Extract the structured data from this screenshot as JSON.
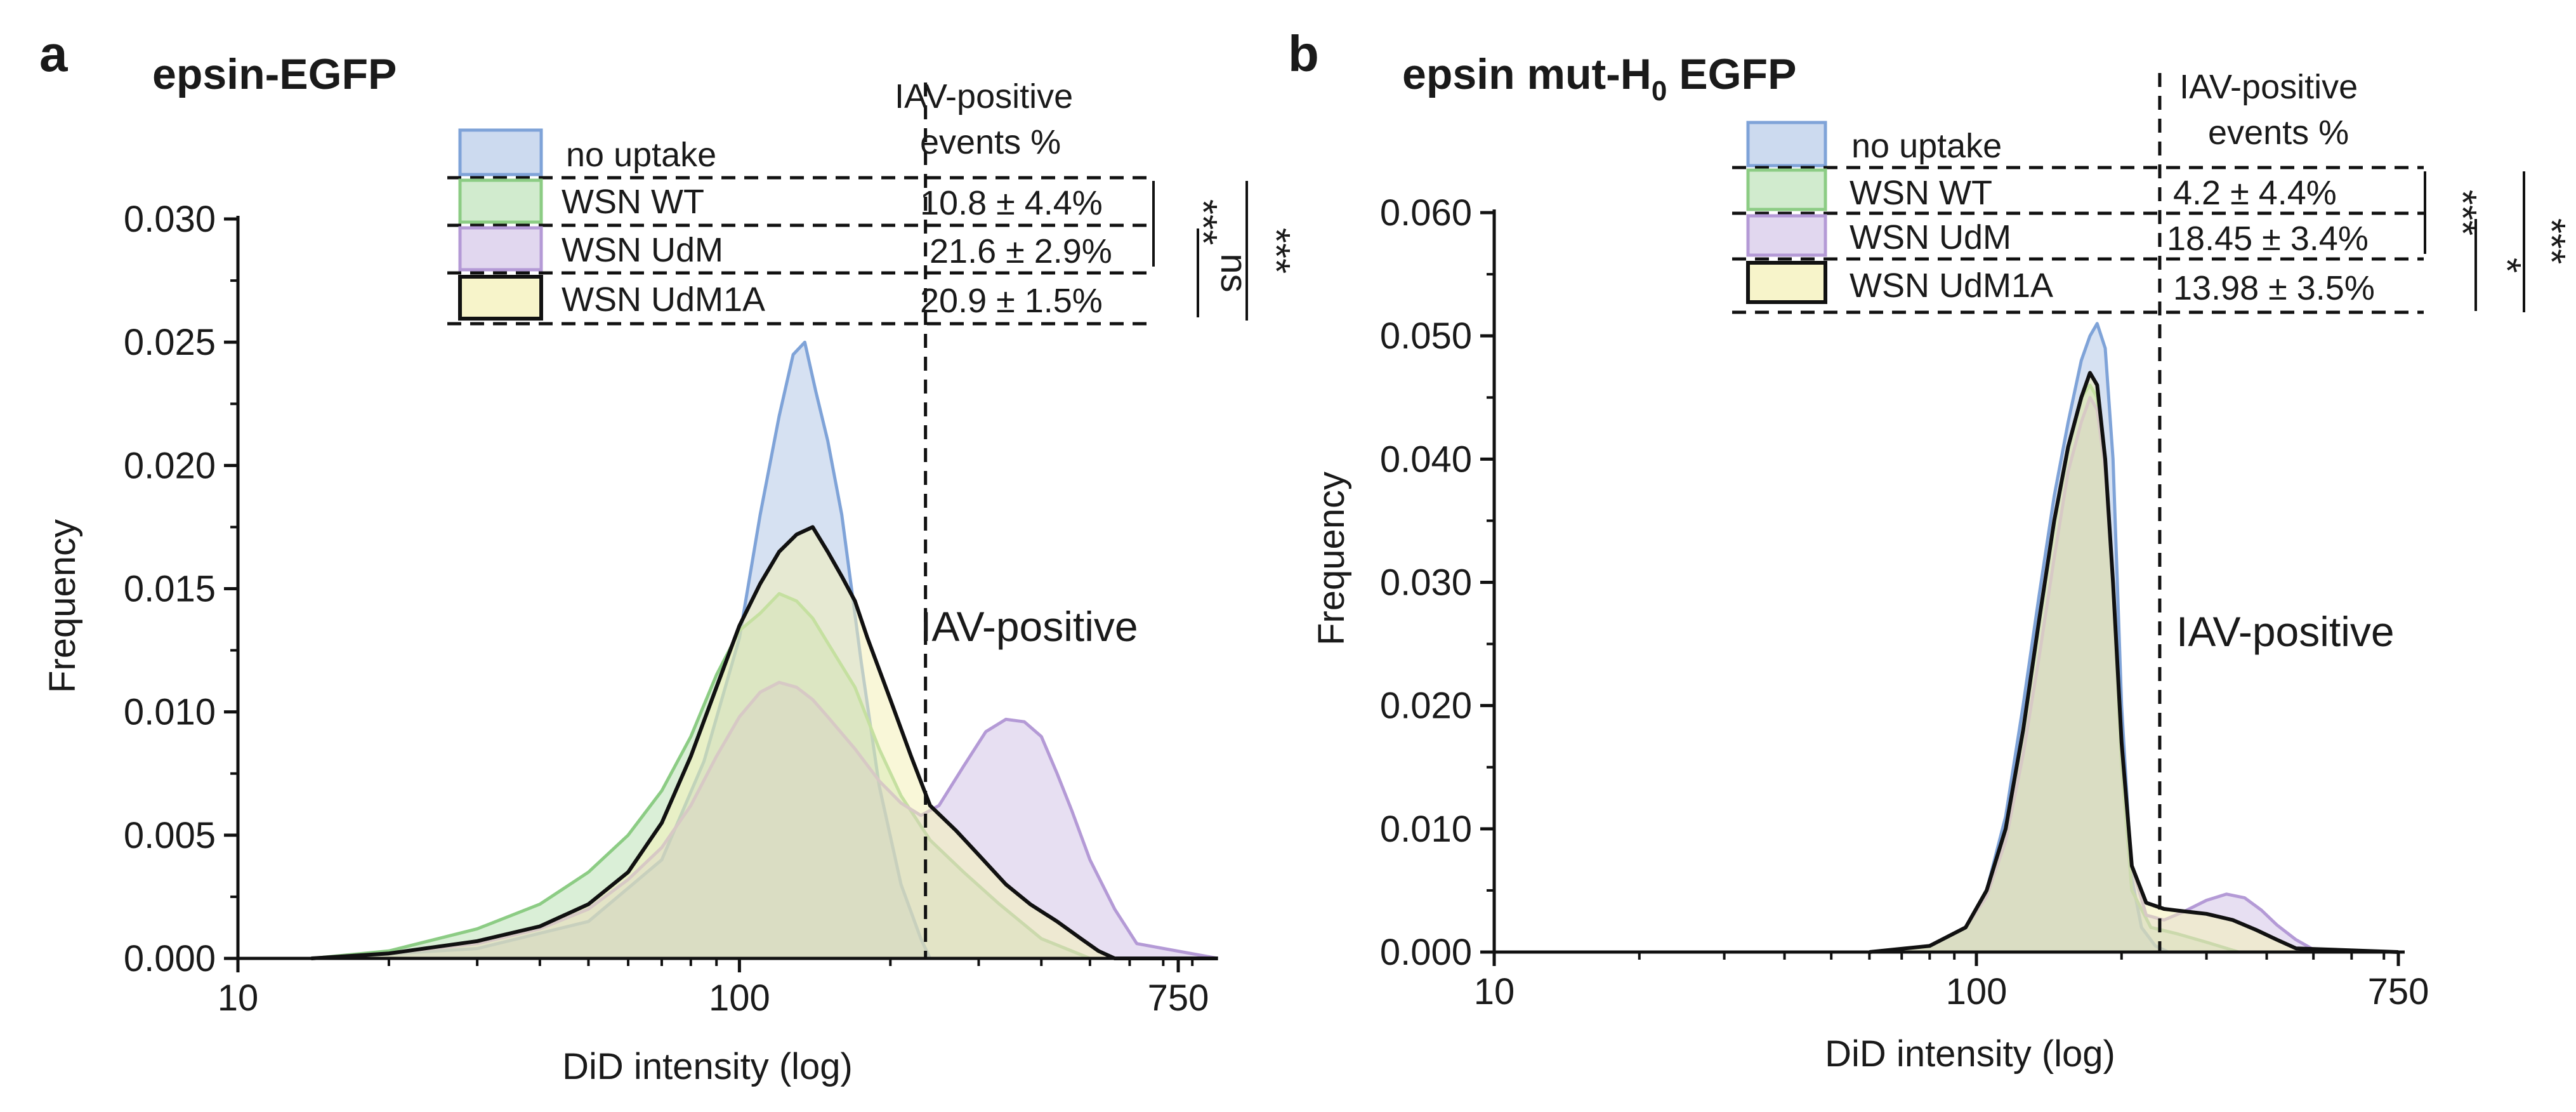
{
  "colors": {
    "no_uptake": "#7fa3d8",
    "wsn_wt": "#8ccc84",
    "wsn_udm": "#b49ad6",
    "wsn_udm1a": "#f4f0b8",
    "black": "#111111"
  },
  "chart_data": [
    {
      "type": "area",
      "panel_letter": "a",
      "title": "epsin-EGFP",
      "xlabel": "DiD intensity (log)",
      "ylabel": "Frequency",
      "xscale": "log",
      "xlim": [
        10,
        850
      ],
      "ylim": [
        0,
        0.03
      ],
      "x_ticks": [
        10,
        100,
        750
      ],
      "x_tick_labels": [
        "10",
        "100",
        "750"
      ],
      "y_ticks": [
        0,
        0.005,
        0.01,
        0.015,
        0.02,
        0.025,
        0.03
      ],
      "y_tick_labels": [
        "0.000",
        "0.005",
        "0.010",
        "0.015",
        "0.020",
        "0.025",
        "0.030"
      ],
      "threshold_x": 235,
      "region_label": "IAV-positive",
      "table_header": [
        "IAV-positive",
        "events %"
      ],
      "series": [
        {
          "name": "no uptake",
          "key": "no_uptake",
          "value": "",
          "x": [
            14,
            30,
            50,
            70,
            85,
            100,
            110,
            120,
            128,
            135,
            142,
            150,
            160,
            175,
            190,
            210,
            230,
            240,
            900
          ],
          "y": [
            0,
            0.0004,
            0.0015,
            0.004,
            0.008,
            0.013,
            0.018,
            0.022,
            0.0245,
            0.025,
            0.023,
            0.021,
            0.018,
            0.012,
            0.007,
            0.003,
            0.0008,
            0,
            0
          ]
        },
        {
          "name": "WSN WT",
          "key": "wsn_wt",
          "value": "10.8 ± 4.4%",
          "x": [
            14,
            20,
            30,
            40,
            50,
            60,
            70,
            80,
            90,
            100,
            110,
            120,
            130,
            140,
            150,
            170,
            190,
            210,
            240,
            280,
            330,
            400,
            500,
            900
          ],
          "y": [
            0,
            0.0003,
            0.0012,
            0.0022,
            0.0035,
            0.005,
            0.0068,
            0.009,
            0.0115,
            0.0133,
            0.014,
            0.0148,
            0.0145,
            0.0138,
            0.0128,
            0.011,
            0.0085,
            0.0066,
            0.0048,
            0.0035,
            0.0022,
            0.0008,
            0,
            0
          ]
        },
        {
          "name": "WSN UdM",
          "key": "wsn_udm",
          "value": "21.6 ± 2.9%",
          "x": [
            14,
            20,
            30,
            40,
            50,
            60,
            70,
            80,
            90,
            100,
            110,
            120,
            130,
            140,
            150,
            170,
            190,
            210,
            230,
            250,
            280,
            310,
            340,
            370,
            400,
            430,
            460,
            500,
            560,
            620,
            900
          ],
          "y": [
            0,
            0.0002,
            0.0006,
            0.0012,
            0.002,
            0.0032,
            0.0045,
            0.0062,
            0.0082,
            0.0098,
            0.0108,
            0.0112,
            0.011,
            0.0105,
            0.0098,
            0.0085,
            0.0072,
            0.0063,
            0.0058,
            0.0062,
            0.0078,
            0.0092,
            0.0097,
            0.0096,
            0.009,
            0.0075,
            0.006,
            0.004,
            0.002,
            0.0006,
            0
          ]
        },
        {
          "name": "WSN UdM1A",
          "key": "wsn_udm1a",
          "value": "20.9 ± 1.5%",
          "x": [
            14,
            20,
            30,
            40,
            50,
            60,
            70,
            80,
            90,
            100,
            110,
            120,
            130,
            140,
            150,
            160,
            170,
            180,
            200,
            220,
            240,
            270,
            300,
            340,
            380,
            430,
            480,
            520,
            560,
            900
          ],
          "y": [
            0,
            0.0002,
            0.0007,
            0.0013,
            0.0022,
            0.0035,
            0.0055,
            0.0082,
            0.011,
            0.0135,
            0.0152,
            0.0165,
            0.0172,
            0.0175,
            0.0165,
            0.0155,
            0.0145,
            0.013,
            0.0105,
            0.0082,
            0.0062,
            0.0052,
            0.0042,
            0.003,
            0.0022,
            0.0015,
            0.0008,
            0.0003,
            0,
            0
          ]
        }
      ],
      "significance": [
        {
          "label": "***",
          "pair": [
            "WSN WT",
            "WSN UdM"
          ]
        },
        {
          "label": "ns",
          "pair": [
            "WSN UdM",
            "WSN UdM1A"
          ]
        },
        {
          "label": "***",
          "pair": [
            "WSN WT",
            "WSN UdM1A"
          ]
        }
      ]
    },
    {
      "type": "area",
      "panel_letter": "b",
      "title": "epsin mut-H",
      "title_sub": "0",
      "title_suffix": " EGFP",
      "xlabel": "DiD intensity (log)",
      "ylabel": "Frequency",
      "xscale": "log",
      "xlim": [
        10,
        750
      ],
      "ylim": [
        0,
        0.06
      ],
      "x_ticks": [
        10,
        100,
        750
      ],
      "x_tick_labels": [
        "10",
        "100",
        "750"
      ],
      "y_ticks": [
        0,
        0.01,
        0.02,
        0.03,
        0.04,
        0.05,
        0.06
      ],
      "y_tick_labels": [
        "0.000",
        "0.010",
        "0.020",
        "0.030",
        "0.040",
        "0.050",
        "0.060"
      ],
      "threshold_x": 240,
      "region_label": "IAV-positive",
      "table_header": [
        "IAV-positive",
        "events %"
      ],
      "series": [
        {
          "name": "no uptake",
          "key": "no_uptake",
          "value": "",
          "x": [
            60,
            80,
            95,
            105,
            115,
            125,
            135,
            145,
            155,
            165,
            172,
            178,
            185,
            192,
            200,
            210,
            220,
            235,
            250,
            750
          ],
          "y": [
            0,
            0.0005,
            0.002,
            0.005,
            0.011,
            0.02,
            0.029,
            0.037,
            0.043,
            0.048,
            0.05,
            0.051,
            0.049,
            0.04,
            0.02,
            0.006,
            0.002,
            0.0005,
            0,
            0
          ]
        },
        {
          "name": "WSN WT",
          "key": "wsn_wt",
          "value": "4.2 ± 4.4%",
          "x": [
            60,
            80,
            95,
            105,
            115,
            125,
            135,
            145,
            155,
            165,
            172,
            178,
            185,
            192,
            200,
            210,
            230,
            260,
            300,
            350,
            750
          ],
          "y": [
            0,
            0.0005,
            0.002,
            0.005,
            0.01,
            0.018,
            0.027,
            0.035,
            0.041,
            0.045,
            0.046,
            0.045,
            0.04,
            0.03,
            0.015,
            0.005,
            0.002,
            0.0015,
            0.0008,
            0,
            0
          ]
        },
        {
          "name": "WSN UdM",
          "key": "wsn_udm",
          "value": "18.45 ± 3.4%",
          "x": [
            60,
            80,
            95,
            105,
            115,
            125,
            135,
            145,
            155,
            165,
            172,
            178,
            185,
            192,
            200,
            210,
            225,
            245,
            270,
            300,
            330,
            360,
            390,
            420,
            460,
            500,
            750
          ],
          "y": [
            0,
            0.0005,
            0.002,
            0.0045,
            0.009,
            0.016,
            0.024,
            0.032,
            0.039,
            0.043,
            0.045,
            0.044,
            0.039,
            0.03,
            0.017,
            0.007,
            0.003,
            0.0026,
            0.0033,
            0.0042,
            0.0047,
            0.0044,
            0.0034,
            0.0022,
            0.001,
            0.0002,
            0
          ]
        },
        {
          "name": "WSN UdM1A",
          "key": "wsn_udm1a",
          "value": "13.98 ± 3.5%",
          "x": [
            60,
            80,
            95,
            105,
            115,
            125,
            135,
            145,
            155,
            165,
            172,
            178,
            185,
            192,
            200,
            210,
            225,
            245,
            270,
            300,
            340,
            380,
            420,
            460,
            750
          ],
          "y": [
            0,
            0.0005,
            0.002,
            0.005,
            0.01,
            0.018,
            0.027,
            0.035,
            0.041,
            0.045,
            0.047,
            0.046,
            0.04,
            0.03,
            0.017,
            0.007,
            0.004,
            0.0035,
            0.0033,
            0.0031,
            0.0026,
            0.0018,
            0.001,
            0.0003,
            0
          ]
        }
      ],
      "significance": [
        {
          "label": "***",
          "pair": [
            "WSN WT",
            "WSN UdM"
          ]
        },
        {
          "label": "*",
          "pair": [
            "WSN UdM",
            "WSN UdM1A"
          ]
        },
        {
          "label": "***",
          "pair": [
            "WSN WT",
            "WSN UdM1A"
          ]
        }
      ]
    }
  ]
}
